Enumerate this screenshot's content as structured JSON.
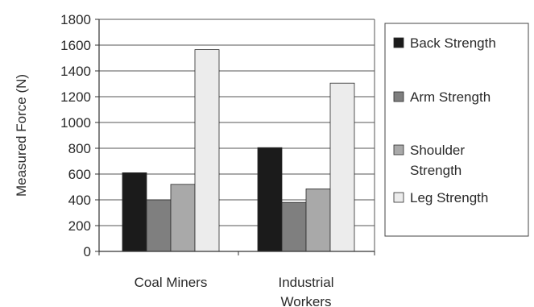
{
  "chart_data": {
    "type": "bar",
    "title": "",
    "xlabel": "",
    "ylabel": "Measured Force (N)",
    "ylim": [
      0,
      1800
    ],
    "yticks": [
      0,
      200,
      400,
      600,
      800,
      1000,
      1200,
      1400,
      1600,
      1800
    ],
    "grid": "horizontal",
    "legend_position": "right",
    "categories": [
      [
        "Coal Miners"
      ],
      [
        "Industrial",
        "Workers"
      ]
    ],
    "series": [
      {
        "name": "Back Strength",
        "legend_lines": [
          "Back Strength"
        ],
        "color": "#1b1b1b",
        "values": [
          610,
          805
        ]
      },
      {
        "name": "Arm Strength",
        "legend_lines": [
          "Arm Strength"
        ],
        "color": "#7f7f7f",
        "values": [
          400,
          380
        ]
      },
      {
        "name": "Shoulder Strength",
        "legend_lines": [
          "Shoulder",
          "Strength"
        ],
        "color": "#a9a9a9",
        "values": [
          520,
          485
        ]
      },
      {
        "name": "Leg Strength",
        "legend_lines": [
          "Leg Strength"
        ],
        "color": "#ececec",
        "values": [
          1565,
          1305
        ]
      }
    ]
  }
}
